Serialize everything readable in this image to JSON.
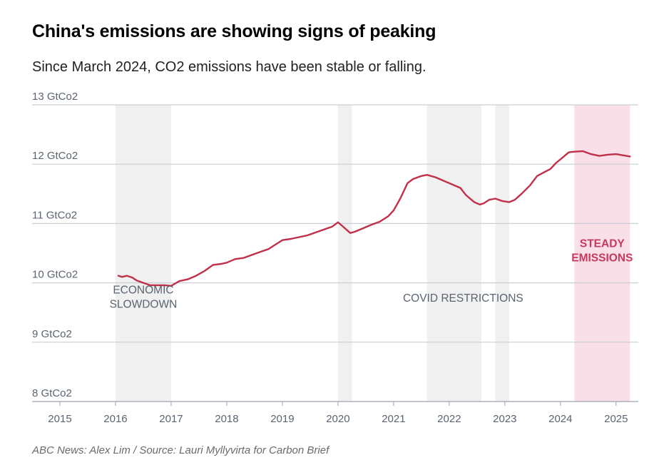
{
  "title": "China's emissions are showing signs of peaking",
  "subtitle": "Since March 2024, CO2 emissions have been stable or falling.",
  "source": "ABC News: Alex Lim / Source: Lauri Myllyvirta for Carbon Brief",
  "chart_data": {
    "type": "line",
    "ylim": [
      8,
      13
    ],
    "xlim": [
      2014.5,
      2025.4
    ],
    "grid": true,
    "yticks": [
      {
        "value": 13,
        "label": "13 GtCo2"
      },
      {
        "value": 12,
        "label": "12 GtCo2"
      },
      {
        "value": 11,
        "label": "11 GtCo2"
      },
      {
        "value": 10,
        "label": "10 GtCo2"
      },
      {
        "value": 9,
        "label": "9 GtCo2"
      },
      {
        "value": 8,
        "label": "8 GtCo2"
      }
    ],
    "xticks": [
      {
        "value": 2015,
        "label": "2015"
      },
      {
        "value": 2016,
        "label": "2016"
      },
      {
        "value": 2017,
        "label": "2017"
      },
      {
        "value": 2018,
        "label": "2018"
      },
      {
        "value": 2019,
        "label": "2019"
      },
      {
        "value": 2020,
        "label": "2020"
      },
      {
        "value": 2021,
        "label": "2021"
      },
      {
        "value": 2022,
        "label": "2022"
      },
      {
        "value": 2023,
        "label": "2023"
      },
      {
        "value": 2024,
        "label": "2024"
      },
      {
        "value": 2025,
        "label": "2025"
      }
    ],
    "bands": [
      {
        "from": 2016.0,
        "to": 2017.0,
        "color": "#f0f0f0",
        "label_lines": [
          "ECONOMIC",
          "SLOWDOWN"
        ],
        "label_y": 9.82,
        "style": "normal"
      },
      {
        "from": 2020.0,
        "to": 2020.25,
        "color": "#f0f0f0"
      },
      {
        "from": 2021.6,
        "to": 2022.58,
        "color": "#f0f0f0",
        "label_lines": [
          "COVID RESTRICTIONS"
        ],
        "label_y": 9.68,
        "label_x": 2022.25,
        "style": "normal"
      },
      {
        "from": 2022.83,
        "to": 2023.08,
        "color": "#f0f0f0"
      },
      {
        "from": 2024.25,
        "to": 2025.25,
        "color": "#f8dfe8",
        "label_lines": [
          "STEADY",
          "EMISSIONS"
        ],
        "label_y": 10.6,
        "style": "highlight"
      }
    ],
    "series": [
      {
        "color": "#c0304a",
        "points": [
          [
            2016.05,
            10.12
          ],
          [
            2016.12,
            10.1
          ],
          [
            2016.2,
            10.12
          ],
          [
            2016.3,
            10.09
          ],
          [
            2016.38,
            10.04
          ],
          [
            2016.5,
            10.0
          ],
          [
            2016.62,
            9.96
          ],
          [
            2016.75,
            9.96
          ],
          [
            2016.88,
            9.96
          ],
          [
            2017.0,
            9.95
          ],
          [
            2017.15,
            10.03
          ],
          [
            2017.3,
            10.06
          ],
          [
            2017.45,
            10.12
          ],
          [
            2017.6,
            10.2
          ],
          [
            2017.75,
            10.3
          ],
          [
            2017.9,
            10.32
          ],
          [
            2018.0,
            10.34
          ],
          [
            2018.15,
            10.4
          ],
          [
            2018.3,
            10.42
          ],
          [
            2018.45,
            10.47
          ],
          [
            2018.6,
            10.52
          ],
          [
            2018.75,
            10.57
          ],
          [
            2018.9,
            10.66
          ],
          [
            2019.0,
            10.72
          ],
          [
            2019.15,
            10.74
          ],
          [
            2019.3,
            10.77
          ],
          [
            2019.45,
            10.8
          ],
          [
            2019.6,
            10.85
          ],
          [
            2019.75,
            10.9
          ],
          [
            2019.9,
            10.95
          ],
          [
            2020.0,
            11.02
          ],
          [
            2020.1,
            10.94
          ],
          [
            2020.22,
            10.84
          ],
          [
            2020.3,
            10.86
          ],
          [
            2020.45,
            10.92
          ],
          [
            2020.6,
            10.98
          ],
          [
            2020.75,
            11.03
          ],
          [
            2020.9,
            11.12
          ],
          [
            2021.0,
            11.22
          ],
          [
            2021.12,
            11.42
          ],
          [
            2021.25,
            11.68
          ],
          [
            2021.35,
            11.75
          ],
          [
            2021.5,
            11.8
          ],
          [
            2021.6,
            11.82
          ],
          [
            2021.75,
            11.78
          ],
          [
            2021.9,
            11.72
          ],
          [
            2022.05,
            11.66
          ],
          [
            2022.2,
            11.6
          ],
          [
            2022.3,
            11.48
          ],
          [
            2022.45,
            11.36
          ],
          [
            2022.55,
            11.32
          ],
          [
            2022.62,
            11.34
          ],
          [
            2022.72,
            11.4
          ],
          [
            2022.83,
            11.42
          ],
          [
            2022.95,
            11.38
          ],
          [
            2023.08,
            11.36
          ],
          [
            2023.18,
            11.4
          ],
          [
            2023.3,
            11.5
          ],
          [
            2023.45,
            11.64
          ],
          [
            2023.58,
            11.8
          ],
          [
            2023.7,
            11.86
          ],
          [
            2023.82,
            11.92
          ],
          [
            2023.92,
            12.02
          ],
          [
            2024.05,
            12.12
          ],
          [
            2024.15,
            12.2
          ],
          [
            2024.25,
            12.21
          ],
          [
            2024.4,
            12.22
          ],
          [
            2024.55,
            12.17
          ],
          [
            2024.7,
            12.14
          ],
          [
            2024.85,
            12.16
          ],
          [
            2025.0,
            12.17
          ],
          [
            2025.12,
            12.15
          ],
          [
            2025.25,
            12.13
          ]
        ]
      }
    ]
  }
}
